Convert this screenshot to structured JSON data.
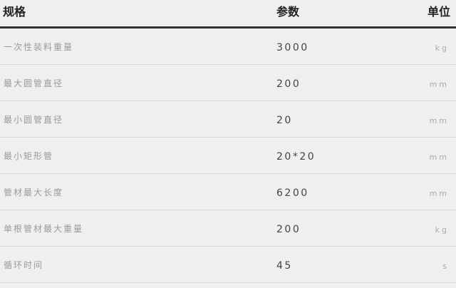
{
  "header": {
    "spec": "规格",
    "param": "参数",
    "unit": "单位"
  },
  "rows": [
    {
      "label": "一次性装料重量",
      "value": "3000",
      "unit": "kg"
    },
    {
      "label": "最大圆管直径",
      "value": "200",
      "unit": "mm"
    },
    {
      "label": "最小圆管直径",
      "value": "20",
      "unit": "mm"
    },
    {
      "label": "最小矩形管",
      "value": "20*20",
      "unit": "mm"
    },
    {
      "label": "管材最大长度",
      "value": "6200",
      "unit": "mm"
    },
    {
      "label": "单根管材最大重量",
      "value": "200",
      "unit": "kg"
    },
    {
      "label": "循环时间",
      "value": "45",
      "unit": "s"
    }
  ]
}
